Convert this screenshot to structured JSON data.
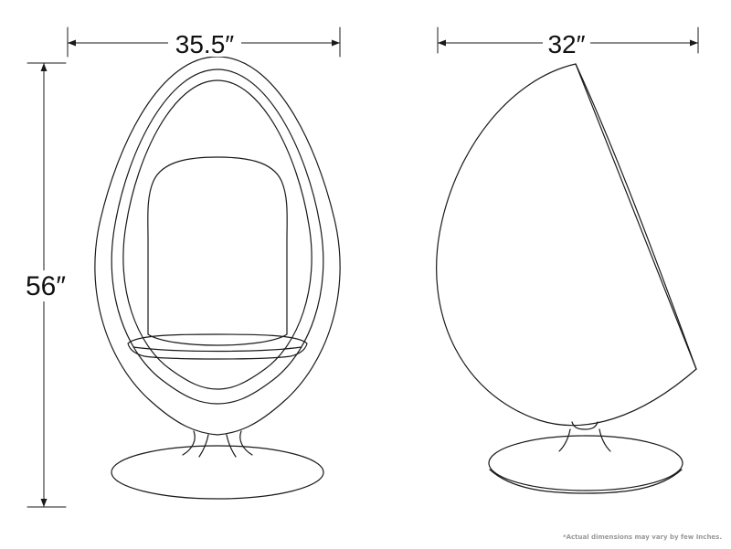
{
  "dimensions": {
    "front_width": "35.5″",
    "side_depth": "32″",
    "height": "56″"
  },
  "note": "*Actual dimensions may vary by few Inches.",
  "colors": {
    "line": "#1a1a1a",
    "background": "#ffffff",
    "note_text": "#999999"
  }
}
